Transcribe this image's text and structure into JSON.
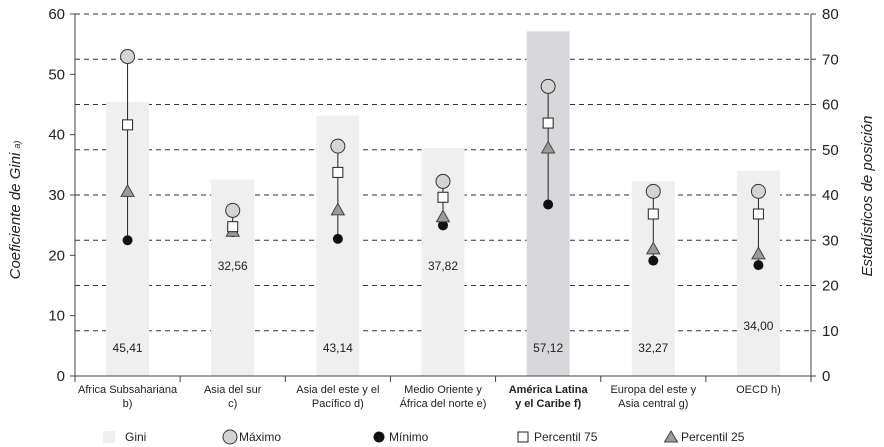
{
  "chart_data": {
    "type": "bar",
    "categories": [
      [
        "Africa Subsahariana",
        "b)"
      ],
      [
        "Asia del sur",
        "c)"
      ],
      [
        "Asia del este y el",
        "Pacífico d)"
      ],
      [
        "Medio Oriente y",
        "África del norte e)"
      ],
      [
        "América Latina",
        "y el Caribe f)"
      ],
      [
        "Europa del este y",
        "Asia central g)"
      ],
      [
        "OECD h)"
      ]
    ],
    "highlight_index": 4,
    "ylabel_left": "Coeficiente de Gini",
    "ylabel_left_suffix": "a)",
    "ylabel_right": "Estadísticos de posición",
    "ylim_left": [
      0,
      60
    ],
    "ylim_right": [
      0,
      80
    ],
    "yticks_left": [
      0,
      10,
      20,
      30,
      40,
      50,
      60
    ],
    "yticks_right": [
      0,
      10,
      20,
      30,
      40,
      50,
      60,
      70,
      80
    ],
    "grid": "dashed horizontal at right-axis ticks",
    "series": [
      {
        "name": "Gini",
        "axis": "left",
        "marker": "bar",
        "color": "#efefef",
        "highlight_color": "#d8d8da",
        "values": [
          45.41,
          32.56,
          43.14,
          37.82,
          57.12,
          32.27,
          34.0
        ],
        "labels": [
          "45,41",
          "32,56",
          "43,14",
          "37,82",
          "57,12",
          "32,27",
          "34,00"
        ]
      },
      {
        "name": "Máximo",
        "axis": "right",
        "marker": "circle-gray",
        "values": [
          70.6,
          36.6,
          50.8,
          43.0,
          64.0,
          40.8,
          40.8
        ]
      },
      {
        "name": "Mínimo",
        "axis": "right",
        "marker": "circle-black",
        "values": [
          30.0,
          31.8,
          30.3,
          33.3,
          37.9,
          25.5,
          24.5
        ]
      },
      {
        "name": "Percentil 75",
        "axis": "right",
        "marker": "square-white",
        "values": [
          55.5,
          33.0,
          45.0,
          39.5,
          55.9,
          35.8,
          35.8
        ]
      },
      {
        "name": "Percentil 25",
        "axis": "right",
        "marker": "triangle-gray",
        "values": [
          40.8,
          32.0,
          36.7,
          35.2,
          50.4,
          28.1,
          27.0
        ]
      }
    ]
  },
  "legend": {
    "items": [
      "Gini",
      "Máximo",
      "Mínimo",
      "Percentil 75",
      "Percentil 25"
    ]
  },
  "colors": {
    "bar": "#efefef",
    "bar_highlight": "#d8d8da",
    "max_fill": "#d4d4d4",
    "min_fill": "#111111",
    "p25_fill": "#9a9a9a",
    "axis": "#444444"
  }
}
